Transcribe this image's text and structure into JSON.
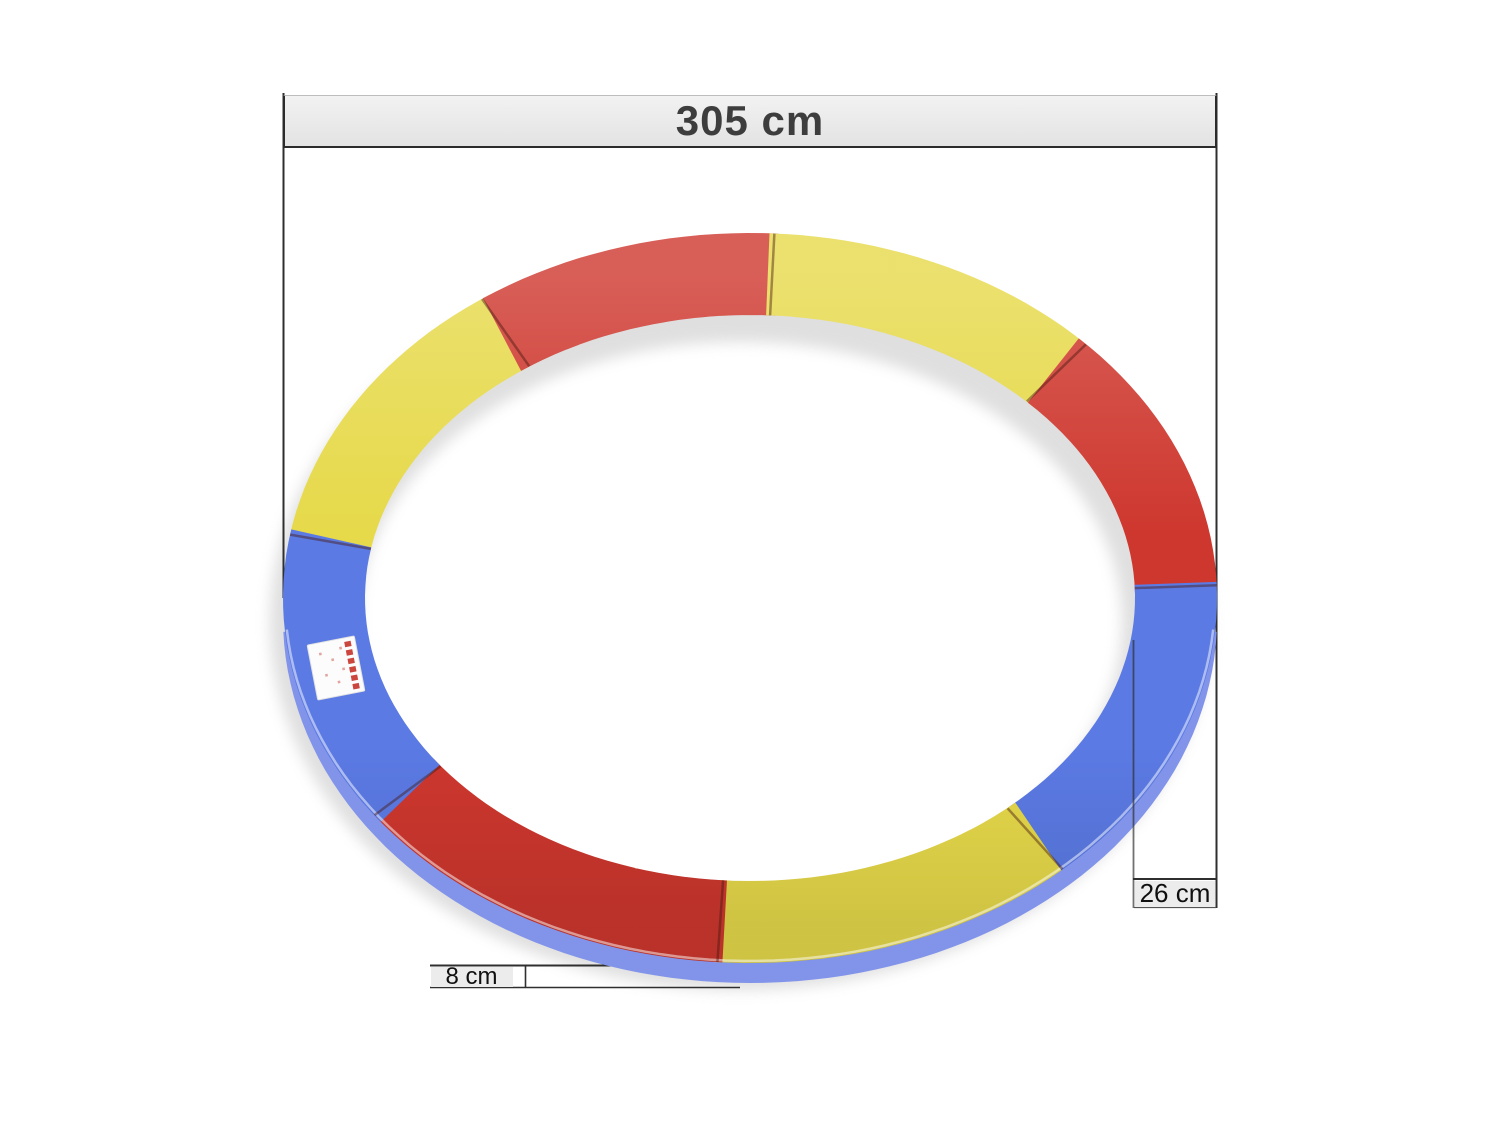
{
  "figure": {
    "type": "product-dimension-image",
    "subject": "round trampoline safety pad (edge cover) made of colored segments, viewed at an angle",
    "background_color": "#ffffff",
    "dimensions": {
      "width_label": "305 cm",
      "height_label": "26 cm",
      "thickness_label": "8 cm"
    },
    "colors": {
      "red": "#ce372e",
      "yellow": "#e6d94a",
      "blue": "#5b7ae4",
      "blue_underside": "#8294ea",
      "measure_line": "#2f2f2f",
      "bar_fill": "#ececec",
      "bar_text": "#3d3d3d",
      "label_text": "#101010",
      "sticker_stripe": "#c5362e"
    },
    "segments": [
      {
        "color_name": "yellow",
        "from_deg": 170,
        "to_deg": 125
      },
      {
        "color_name": "red",
        "from_deg": 125,
        "to_deg": 87
      },
      {
        "color_name": "yellow",
        "from_deg": 87,
        "to_deg": 44
      },
      {
        "color_name": "red",
        "from_deg": 44,
        "to_deg": 2
      },
      {
        "color_name": "blue",
        "from_deg": 2,
        "to_deg": -48
      },
      {
        "color_name": "yellow",
        "from_deg": -48,
        "to_deg": -94
      },
      {
        "color_name": "red",
        "from_deg": -94,
        "to_deg": -143.5
      },
      {
        "color_name": "blue",
        "from_deg": -143.5,
        "to_deg": -190
      }
    ],
    "seam_angles_deg": [
      170,
      125,
      87,
      44,
      2,
      -48,
      -94,
      -143.5
    ],
    "sticker": {
      "present": true,
      "description": "small white product label with red stripe column on left blue segment",
      "angle_deg": -167
    }
  }
}
